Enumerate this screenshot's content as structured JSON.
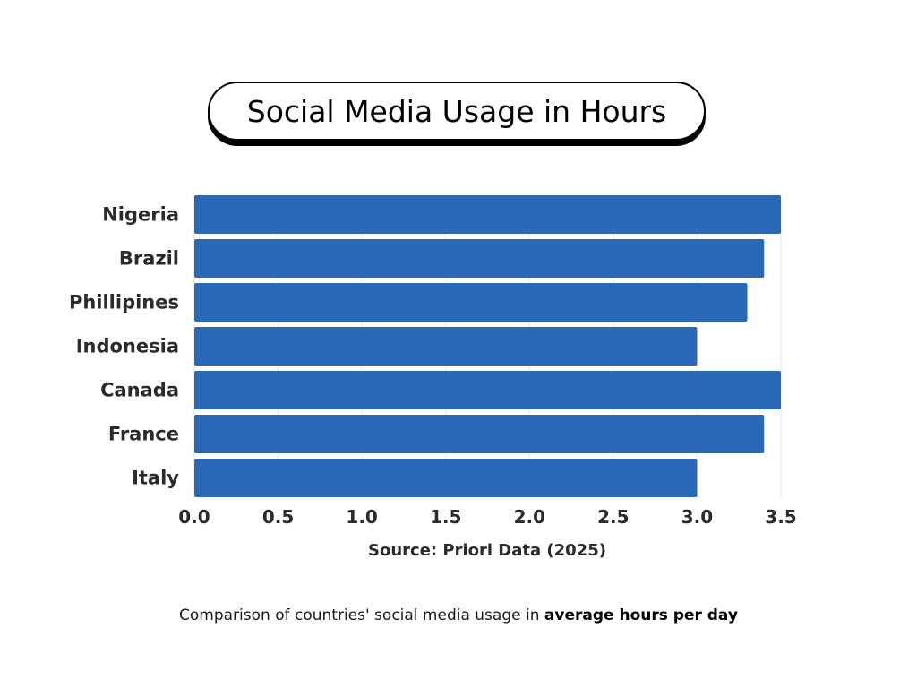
{
  "title": "Social Media Usage in Hours",
  "source": "Source: Priori Data (2025)",
  "caption": {
    "prefix": "Comparison of countries' social media usage in ",
    "emphasis": "average hours per day"
  },
  "colors": {
    "bar": "#2b69b8",
    "grid": "#e6e6e6",
    "axis_text": "#2b2b2b"
  },
  "chart_data": {
    "type": "bar",
    "orientation": "horizontal",
    "title": "Social Media Usage in Hours",
    "xlabel": "Source: Priori Data (2025)",
    "ylabel": "",
    "categories": [
      "Nigeria",
      "Brazil",
      "Phillipines",
      "Indonesia",
      "Canada",
      "France",
      "Italy"
    ],
    "values": [
      3.5,
      3.4,
      3.3,
      3.0,
      3.5,
      3.4,
      3.0
    ],
    "xlim": [
      0,
      3.5
    ],
    "x_ticks": [
      "0.0",
      "0.5",
      "1.0",
      "1.5",
      "2.0",
      "2.5",
      "3.0",
      "3.5"
    ],
    "grid": "vertical",
    "legend": "none"
  }
}
